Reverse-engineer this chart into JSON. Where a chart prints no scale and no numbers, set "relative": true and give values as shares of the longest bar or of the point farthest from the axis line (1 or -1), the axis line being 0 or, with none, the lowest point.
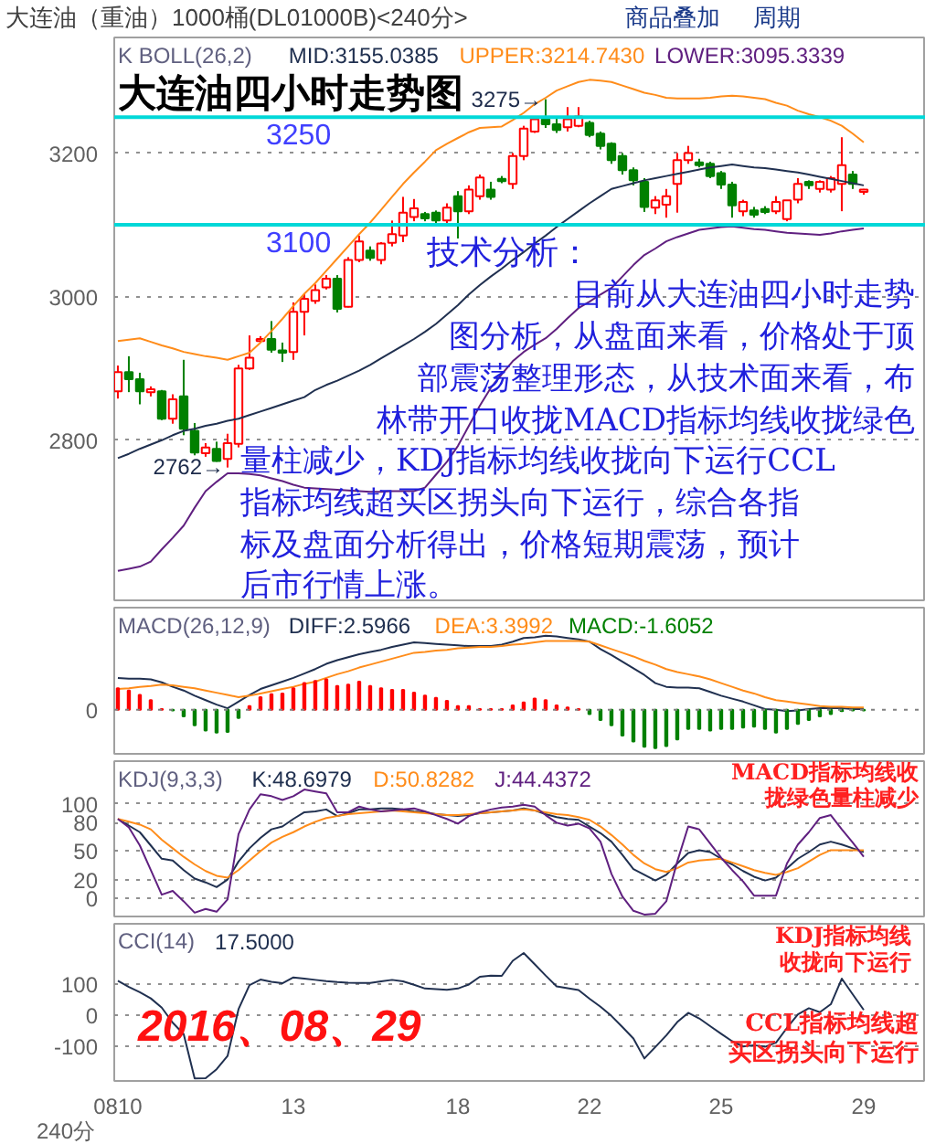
{
  "chart_data": [
    {
      "type": "candlestick",
      "title": "大连油四小时走势图",
      "subtitle": "大连油（重油）1000桶(DL01000B)<240分>",
      "legend_title": "K  BOLL(26,2)",
      "legend": "top",
      "categories": [
        "0810",
        null,
        null,
        null,
        null,
        null,
        null,
        null,
        null,
        null,
        null,
        null,
        null,
        null,
        null,
        null,
        "13",
        null,
        null,
        null,
        null,
        null,
        null,
        null,
        null,
        null,
        null,
        null,
        null,
        null,
        null,
        "18",
        null,
        null,
        null,
        null,
        null,
        null,
        null,
        null,
        null,
        null,
        null,
        "22",
        null,
        null,
        null,
        null,
        null,
        null,
        null,
        null,
        null,
        null,
        null,
        "25",
        null,
        null,
        null,
        null,
        null,
        null,
        null,
        null,
        null,
        null,
        null,
        null,
        "29"
      ],
      "ohlc": [
        [
          2868,
          2904,
          2858,
          2895
        ],
        [
          2895,
          2917,
          2867,
          2885
        ],
        [
          2885,
          2894,
          2850,
          2868
        ],
        [
          2867,
          2875,
          2861,
          2871
        ],
        [
          2868,
          2870,
          2828,
          2830
        ],
        [
          2830,
          2864,
          2823,
          2857
        ],
        [
          2861,
          2912,
          2807,
          2816
        ],
        [
          2813,
          2824,
          2779,
          2783
        ],
        [
          2782,
          2796,
          2777,
          2790
        ],
        [
          2788,
          2798,
          2770,
          2771
        ],
        [
          2774,
          2809,
          2762,
          2796
        ],
        [
          2795,
          2905,
          2790,
          2900
        ],
        [
          2900,
          2946,
          2898,
          2915
        ],
        [
          2938,
          2945,
          2936,
          2941
        ],
        [
          2941,
          2966,
          2922,
          2926
        ],
        [
          2925,
          2936,
          2909,
          2922
        ],
        [
          2923,
          2992,
          2912,
          2979
        ],
        [
          2979,
          3004,
          2946,
          2997
        ],
        [
          2994,
          3017,
          2990,
          3009
        ],
        [
          3013,
          3030,
          3010,
          3025
        ],
        [
          3025,
          3030,
          2978,
          2983
        ],
        [
          2986,
          3055,
          2985,
          3051
        ],
        [
          3051,
          3085,
          3048,
          3077
        ],
        [
          3064,
          3070,
          3050,
          3054
        ],
        [
          3051,
          3076,
          3045,
          3074
        ],
        [
          3075,
          3106,
          3070,
          3087
        ],
        [
          3085,
          3139,
          3076,
          3117
        ],
        [
          3111,
          3136,
          3105,
          3123
        ],
        [
          3115,
          3118,
          3105,
          3109
        ],
        [
          3117,
          3120,
          3100,
          3106
        ],
        [
          3106,
          3130,
          3098,
          3124
        ],
        [
          3140,
          3147,
          3081,
          3119
        ],
        [
          3119,
          3155,
          3115,
          3149
        ],
        [
          3140,
          3170,
          3135,
          3166
        ],
        [
          3149,
          3160,
          3135,
          3139
        ],
        [
          3164,
          3168,
          3158,
          3161
        ],
        [
          3157,
          3200,
          3150,
          3196
        ],
        [
          3196,
          3238,
          3190,
          3234
        ],
        [
          3230,
          3250,
          3228,
          3247
        ],
        [
          3247,
          3275,
          3235,
          3240
        ],
        [
          3240,
          3248,
          3228,
          3232
        ],
        [
          3236,
          3264,
          3230,
          3247
        ],
        [
          3238,
          3264,
          3236,
          3251
        ],
        [
          3242,
          3245,
          3222,
          3225
        ],
        [
          3227,
          3230,
          3205,
          3210
        ],
        [
          3213,
          3215,
          3185,
          3190
        ],
        [
          3196,
          3200,
          3170,
          3176
        ],
        [
          3176,
          3180,
          3155,
          3162
        ],
        [
          3160,
          3165,
          3118,
          3125
        ],
        [
          3124,
          3140,
          3115,
          3134
        ],
        [
          3128,
          3150,
          3110,
          3140
        ],
        [
          3157,
          3200,
          3117,
          3190
        ],
        [
          3190,
          3210,
          3185,
          3200
        ],
        [
          3187,
          3192,
          3180,
          3183
        ],
        [
          3185,
          3188,
          3165,
          3168
        ],
        [
          3172,
          3175,
          3150,
          3156
        ],
        [
          3156,
          3160,
          3110,
          3127
        ],
        [
          3119,
          3135,
          3112,
          3132
        ],
        [
          3120,
          3125,
          3110,
          3114
        ],
        [
          3122,
          3126,
          3115,
          3118
        ],
        [
          3119,
          3140,
          3115,
          3132
        ],
        [
          3108,
          3134,
          3105,
          3134
        ],
        [
          3135,
          3165,
          3130,
          3157
        ],
        [
          3160,
          3162,
          3150,
          3155
        ],
        [
          3150,
          3162,
          3145,
          3160
        ],
        [
          3149,
          3168,
          3145,
          3165
        ],
        [
          3157,
          3222,
          3119,
          3183
        ],
        [
          3170,
          3175,
          3150,
          3157
        ],
        [
          3146,
          3150,
          3142,
          3149
        ]
      ],
      "colors": [
        "#ff0000",
        "#008000",
        "#008000",
        "#ff0000",
        "#008000",
        "#ff0000",
        "#008000",
        "#008000",
        "#ff0000",
        "#008000",
        "#ff0000",
        "#ff0000",
        "#ff0000",
        "#ff0000",
        "#008000",
        "#008000",
        "#ff0000",
        "#ff0000",
        "#ff0000",
        "#ff0000",
        "#008000",
        "#ff0000",
        "#ff0000",
        "#008000",
        "#ff0000",
        "#ff0000",
        "#ff0000",
        "#ff0000",
        "#008000",
        "#008000",
        "#ff0000",
        "#008000",
        "#ff0000",
        "#ff0000",
        "#008000",
        "#008000",
        "#ff0000",
        "#ff0000",
        "#ff0000",
        "#008000",
        "#008000",
        "#ff0000",
        "#ff0000",
        "#008000",
        "#008000",
        "#008000",
        "#008000",
        "#008000",
        "#008000",
        "#ff0000",
        "#ff0000",
        "#ff0000",
        "#ff0000",
        "#008000",
        "#008000",
        "#008000",
        "#008000",
        "#ff0000",
        "#008000",
        "#008000",
        "#ff0000",
        "#ff0000",
        "#ff0000",
        "#008000",
        "#ff0000",
        "#ff0000",
        "#ff0000",
        "#008000",
        "#ff0000"
      ],
      "series": [
        {
          "name": "MID:3155.0385",
          "type": "line",
          "color": "#203050",
          "values": [
            2775,
            2781,
            2788,
            2794,
            2800,
            2807,
            2813,
            2816,
            2820,
            2823,
            2827,
            2830,
            2835,
            2840,
            2845,
            2850,
            2855,
            2860,
            2870,
            2877,
            2883,
            2890,
            2897,
            2905,
            2914,
            2923,
            2932,
            2941,
            2951,
            2962,
            2975,
            2988,
            3003,
            3016,
            3028,
            3039,
            3051,
            3062,
            3074,
            3085,
            3097,
            3108,
            3119,
            3130,
            3140,
            3150,
            3154,
            3158,
            3162,
            3165,
            3168,
            3171,
            3174,
            3177,
            3180,
            3182,
            3184,
            3182,
            3180,
            3179,
            3177,
            3175,
            3173,
            3170,
            3167,
            3164,
            3161,
            3158,
            3155
          ]
        },
        {
          "name": "UPPER:3214.7430",
          "type": "line",
          "color": "#ff8c1a",
          "values": [
            2938,
            2940,
            2942,
            2937,
            2932,
            2928,
            2923,
            2920,
            2917,
            2915,
            2912,
            2917,
            2922,
            2936,
            2952,
            2969,
            2987,
            3004,
            3019,
            3036,
            3053,
            3070,
            3087,
            3103,
            3121,
            3139,
            3157,
            3173,
            3188,
            3204,
            3213,
            3221,
            3229,
            3235,
            3236,
            3237,
            3246,
            3256,
            3268,
            3277,
            3287,
            3293,
            3299,
            3302,
            3301,
            3299,
            3294,
            3289,
            3284,
            3281,
            3277,
            3276,
            3276,
            3276,
            3277,
            3279,
            3280,
            3279,
            3277,
            3275,
            3270,
            3266,
            3259,
            3254,
            3250,
            3245,
            3238,
            3227,
            3215
          ]
        },
        {
          "name": "LOWER:3095.3339",
          "type": "line",
          "color": "#602080",
          "values": [
            2618,
            2621,
            2624,
            2631,
            2648,
            2664,
            2681,
            2706,
            2729,
            2742,
            2754,
            2754,
            2753,
            2751,
            2747,
            2743,
            2738,
            2734,
            2733,
            2732,
            2731,
            2730,
            2729,
            2728,
            2728,
            2729,
            2729,
            2729,
            2734,
            2752,
            2770,
            2792,
            2820,
            2848,
            2873,
            2892,
            2910,
            2923,
            2933,
            2942,
            2955,
            2970,
            2984,
            2993,
            3003,
            3012,
            3028,
            3044,
            3058,
            3067,
            3077,
            3083,
            3088,
            3093,
            3095,
            3097,
            3098,
            3096,
            3094,
            3093,
            3091,
            3089,
            3088,
            3087,
            3086,
            3088,
            3091,
            3093,
            3095
          ]
        }
      ],
      "ylim": [
        2577,
        3361
      ],
      "yticks": [
        2800,
        3000,
        3200
      ],
      "grid": "y",
      "tick_labels": "y",
      "ref_lines": [
        {
          "axis": "y",
          "value": 3250,
          "label": "3250",
          "color": "#00d8d8"
        },
        {
          "axis": "y",
          "value": 3100,
          "label": "3100",
          "color": "#00d8d8"
        }
      ],
      "annotations": [
        "3275→",
        "2762→",
        "技术分析：",
        "目前从大连油四小时走势",
        "图分析，从盘面来看，价格处于顶",
        "部震荡整理形态，从技术面来看，布",
        "林带开口收拢MACD指标均线收拢绿色",
        "量柱减少，KDJ指标均线收拢向下运行CCL",
        "指标均线超买区拐头向下运行，综合各指",
        "标及盘面分析得出，价格短期震荡，预计",
        "后市行情上涨。",
        "商品叠加",
        "周期"
      ]
    },
    {
      "type": "bar",
      "legend_title": "MACD(26,12,9)",
      "legend": "top left",
      "relative": true,
      "tick_labels": "y",
      "categories": [
        "0810",
        null,
        null,
        null,
        null,
        null,
        null,
        null,
        null,
        null,
        null,
        null,
        null,
        null,
        null,
        null,
        "13",
        null,
        null,
        null,
        null,
        null,
        null,
        null,
        null,
        null,
        null,
        null,
        null,
        null,
        null,
        "18",
        null,
        null,
        null,
        null,
        null,
        null,
        null,
        null,
        null,
        null,
        null,
        "22",
        null,
        null,
        null,
        null,
        null,
        null,
        null,
        null,
        null,
        null,
        null,
        "25",
        null,
        null,
        null,
        null,
        null,
        null,
        null,
        null,
        null,
        null,
        null,
        null,
        "29"
      ],
      "series": [
        {
          "name": "DIFF:2.5966",
          "type": "line",
          "color": "#203050",
          "values": [
            0.43,
            0.42,
            0.42,
            0.41,
            0.37,
            0.31,
            0.26,
            0.19,
            0.13,
            0.07,
            0.02,
            0.11,
            0.2,
            0.28,
            0.33,
            0.38,
            0.43,
            0.49,
            0.55,
            0.62,
            0.67,
            0.71,
            0.75,
            0.78,
            0.81,
            0.85,
            0.88,
            0.91,
            0.9,
            0.89,
            0.88,
            0.87,
            0.86,
            0.86,
            0.86,
            0.88,
            0.92,
            0.97,
            0.98,
            1.0,
            0.99,
            0.97,
            0.95,
            0.92,
            0.82,
            0.74,
            0.65,
            0.56,
            0.47,
            0.36,
            0.31,
            0.3,
            0.3,
            0.29,
            0.24,
            0.19,
            0.15,
            0.11,
            0.06,
            0.01,
            0,
            -0.02,
            -0.01,
            0.01,
            0.02,
            0.02,
            0.02,
            0.01,
            0.01
          ]
        },
        {
          "name": "DEA:3.3992",
          "type": "line",
          "color": "#ff8c1a",
          "values": [
            0.28,
            0.29,
            0.31,
            0.32,
            0.34,
            0.33,
            0.31,
            0.29,
            0.26,
            0.23,
            0.2,
            0.17,
            0.19,
            0.22,
            0.25,
            0.28,
            0.31,
            0.35,
            0.38,
            0.43,
            0.48,
            0.52,
            0.57,
            0.61,
            0.65,
            0.69,
            0.73,
            0.77,
            0.78,
            0.8,
            0.81,
            0.83,
            0.84,
            0.85,
            0.85,
            0.86,
            0.88,
            0.89,
            0.91,
            0.93,
            0.93,
            0.93,
            0.93,
            0.92,
            0.87,
            0.82,
            0.77,
            0.72,
            0.66,
            0.61,
            0.55,
            0.51,
            0.48,
            0.45,
            0.41,
            0.36,
            0.31,
            0.26,
            0.22,
            0.17,
            0.13,
            0.11,
            0.09,
            0.07,
            0.05,
            0.04,
            0.04,
            0.03,
            0.03
          ]
        },
        {
          "name": "MACD:-1.6052",
          "type": "bar",
          "colors": [
            "#ff0000",
            "#ff0000",
            "#ff0000",
            "#ff0000",
            "#ff0000",
            "#008000",
            "#008000",
            "#008000",
            "#008000",
            "#008000",
            "#008000",
            "#008000",
            "#ff0000",
            "#ff0000",
            "#ff0000",
            "#ff0000",
            "#ff0000",
            "#ff0000",
            "#ff0000",
            "#ff0000",
            "#ff0000",
            "#ff0000",
            "#ff0000",
            "#ff0000",
            "#ff0000",
            "#ff0000",
            "#ff0000",
            "#ff0000",
            "#ff0000",
            "#ff0000",
            "#ff0000",
            "#ff0000",
            "#ff0000",
            "#ff0000",
            "#ff0000",
            "#ff0000",
            "#ff0000",
            "#ff0000",
            "#ff0000",
            "#ff0000",
            "#ff0000",
            "#ff0000",
            "#ff0000",
            "#008000",
            "#008000",
            "#008000",
            "#008000",
            "#008000",
            "#008000",
            "#008000",
            "#008000",
            "#008000",
            "#008000",
            "#008000",
            "#008000",
            "#008000",
            "#008000",
            "#008000",
            "#008000",
            "#008000",
            "#008000",
            "#008000",
            "#008000",
            "#008000",
            "#008000",
            "#008000",
            "#008000",
            "#008000",
            "#008000"
          ],
          "values": [
            0.29,
            0.26,
            0.2,
            0.13,
            0.01,
            -0.01,
            -0.09,
            -0.21,
            -0.28,
            -0.31,
            -0.3,
            -0.11,
            0.05,
            0.17,
            0.21,
            0.22,
            0.29,
            0.36,
            0.39,
            0.41,
            0.32,
            0.34,
            0.38,
            0.32,
            0.29,
            0.27,
            0.27,
            0.23,
            0.19,
            0.16,
            0.12,
            0.05,
            0.05,
            0.01,
            0.01,
            0.01,
            0.06,
            0.1,
            0.15,
            0.13,
            0.06,
            0.03,
            0.01,
            -0.06,
            -0.14,
            -0.21,
            -0.35,
            -0.43,
            -0.5,
            -0.52,
            -0.49,
            -0.4,
            -0.26,
            -0.26,
            -0.28,
            -0.26,
            -0.26,
            -0.24,
            -0.23,
            -0.26,
            -0.31,
            -0.26,
            -0.19,
            -0.14,
            -0.09,
            -0.06,
            -0.02,
            -0.01,
            -0.01
          ]
        }
      ],
      "ref_lines": [
        {
          "axis": "y",
          "value": 0,
          "label": "0",
          "color": "#808080",
          "line_style": "dotted"
        }
      ]
    },
    {
      "type": "line",
      "legend_title": "KDJ(9,3,3)",
      "legend": "top left",
      "tick_labels": "y",
      "ylim": [
        -19,
        145
      ],
      "yticks": [
        0,
        20,
        50,
        80,
        100
      ],
      "grid": "y",
      "categories": [
        "0810",
        null,
        null,
        null,
        null,
        null,
        null,
        null,
        null,
        null,
        null,
        null,
        null,
        null,
        null,
        null,
        "13",
        null,
        null,
        null,
        null,
        null,
        null,
        null,
        null,
        null,
        null,
        null,
        null,
        null,
        null,
        "18",
        null,
        null,
        null,
        null,
        null,
        null,
        null,
        null,
        null,
        null,
        null,
        "22",
        null,
        null,
        null,
        null,
        null,
        null,
        null,
        null,
        null,
        null,
        null,
        "25",
        null,
        null,
        null,
        null,
        null,
        null,
        null,
        null,
        null,
        null,
        null,
        null,
        "29"
      ],
      "series": [
        {
          "name": "K:48.6979",
          "color": "#203050",
          "values": [
            84,
            77,
            70,
            56,
            42,
            40,
            30,
            21,
            17,
            12,
            20,
            39,
            53,
            64,
            73,
            76,
            84,
            91,
            92,
            94,
            87,
            90,
            94,
            94,
            95,
            95,
            94,
            92,
            91,
            89,
            88,
            87,
            88,
            90,
            91,
            92,
            93,
            95,
            93,
            89,
            86,
            84,
            83,
            76,
            69,
            60,
            46,
            31,
            25,
            19,
            25,
            37,
            48,
            51,
            49,
            42,
            36,
            29,
            23,
            19,
            22,
            32,
            42,
            49,
            57,
            60,
            57,
            53,
            49
          ]
        },
        {
          "name": "D:50.8282",
          "color": "#ff8c1a",
          "values": [
            84,
            81,
            78,
            73,
            62,
            53,
            44,
            36,
            29,
            24,
            22,
            30,
            40,
            50,
            59,
            65,
            70,
            76,
            81,
            85,
            87,
            89,
            90,
            91,
            92,
            93,
            92,
            91,
            90,
            89,
            88,
            88,
            89,
            90,
            91,
            92,
            93,
            94,
            93,
            91,
            89,
            88,
            86,
            83,
            76,
            67,
            57,
            46,
            37,
            31,
            28,
            32,
            38,
            40,
            41,
            42,
            38,
            34,
            30,
            27,
            25,
            28,
            32,
            39,
            46,
            51,
            51,
            51,
            51
          ]
        },
        {
          "name": "J:44.4372",
          "color": "#602080",
          "values": [
            84,
            75,
            56,
            30,
            4,
            8,
            -3,
            -15,
            -11,
            -14,
            -1,
            68,
            94,
            110,
            108,
            104,
            108,
            115,
            113,
            111,
            91,
            91,
            97,
            94,
            92,
            93,
            94,
            95,
            92,
            88,
            84,
            79,
            87,
            91,
            94,
            96,
            97,
            99,
            97,
            88,
            80,
            77,
            79,
            74,
            60,
            26,
            2,
            -13,
            -17,
            -16,
            -3,
            39,
            76,
            73,
            58,
            43,
            30,
            18,
            3,
            3,
            3,
            37,
            57,
            70,
            85,
            88,
            73,
            59,
            44
          ]
        }
      ],
      "annotations": [
        "MACD指标均线收",
        "拢绿色量柱减少"
      ]
    },
    {
      "type": "line",
      "legend_title": "CCI(14)",
      "legend": "top left",
      "ylim": [
        -213,
        297
      ],
      "yticks": [
        -100,
        0,
        100
      ],
      "grid": "y",
      "categories": [
        "0810",
        null,
        null,
        null,
        null,
        null,
        null,
        null,
        null,
        null,
        null,
        null,
        null,
        null,
        null,
        null,
        "13",
        null,
        null,
        null,
        null,
        null,
        null,
        null,
        null,
        null,
        null,
        null,
        null,
        null,
        null,
        "18",
        null,
        null,
        null,
        null,
        null,
        null,
        null,
        null,
        null,
        null,
        null,
        "22",
        null,
        null,
        null,
        null,
        null,
        null,
        null,
        null,
        null,
        null,
        null,
        "25",
        null,
        null,
        null,
        null,
        null,
        null,
        null,
        null,
        null,
        null,
        null,
        null,
        "29"
      ],
      "series": [
        {
          "name": "17.5000",
          "color": "#203050",
          "values": [
            112,
            92,
            75,
            55,
            25,
            -24,
            -61,
            -205,
            -204,
            -175,
            -132,
            20,
            98,
            116,
            109,
            104,
            123,
            119,
            115,
            111,
            108,
            106,
            105,
            105,
            110,
            115,
            110,
            99,
            87,
            85,
            83,
            87,
            100,
            125,
            129,
            128,
            177,
            202,
            166,
            129,
            94,
            88,
            82,
            54,
            28,
            -2,
            -38,
            -75,
            -140,
            -103,
            -65,
            -22,
            8,
            -10,
            -35,
            -60,
            -84,
            -101,
            -97,
            -102,
            -89,
            -41,
            3,
            23,
            10,
            36,
            119,
            68,
            17.5
          ]
        }
      ],
      "annotations": [
        "KDJ指标均线",
        "收拢向下运行",
        "CCL指标均线超",
        "买区拐头向下运行",
        "2016、08、29",
        "240分"
      ]
    }
  ]
}
